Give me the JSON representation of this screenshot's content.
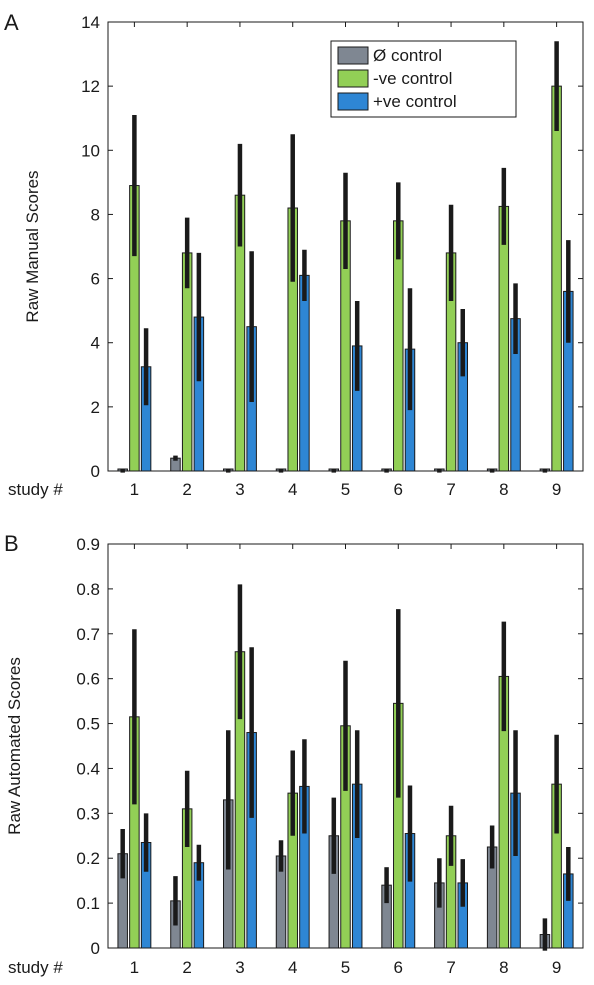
{
  "colors": {
    "series_0": "#7f8792",
    "series_1": "#92cf56",
    "series_2": "#2e86d4",
    "error_bar": "#1a1a1a"
  },
  "chart_data": [
    {
      "type": "bar",
      "panel_label": "A",
      "ylabel": "Raw Manual Scores",
      "xlabel": "study #",
      "categories": [
        "1",
        "2",
        "3",
        "4",
        "5",
        "6",
        "7",
        "8",
        "9"
      ],
      "ylim": [
        0,
        14
      ],
      "yticks": [
        "0",
        "2",
        "4",
        "6",
        "8",
        "10",
        "12",
        "14"
      ],
      "legend_position": "top-right",
      "series": [
        {
          "name": "Ø control",
          "values": [
            0.0,
            0.4,
            0.0,
            0.0,
            0.0,
            0.0,
            0.0,
            0.0,
            0.0
          ],
          "error": [
            0.05,
            0.08,
            0.05,
            0.05,
            0.05,
            0.05,
            0.05,
            0.05,
            0.05
          ]
        },
        {
          "name": "-ve control",
          "values": [
            8.9,
            6.8,
            8.6,
            8.2,
            7.8,
            7.8,
            6.8,
            8.25,
            12.0
          ],
          "error": [
            2.2,
            1.1,
            1.6,
            2.3,
            1.5,
            1.2,
            1.5,
            1.2,
            1.4
          ]
        },
        {
          "name": "+ve control",
          "values": [
            3.25,
            4.8,
            4.5,
            6.1,
            3.9,
            3.8,
            4.0,
            4.75,
            5.6
          ],
          "error": [
            1.2,
            2.0,
            2.35,
            0.8,
            1.4,
            1.9,
            1.05,
            1.1,
            1.6
          ]
        }
      ]
    },
    {
      "type": "bar",
      "panel_label": "B",
      "ylabel": "Raw Automated Scores",
      "xlabel": "study #",
      "categories": [
        "1",
        "2",
        "3",
        "4",
        "5",
        "6",
        "7",
        "8",
        "9"
      ],
      "ylim": [
        0,
        0.9
      ],
      "yticks": [
        "0",
        "0.1",
        "0.2",
        "0.3",
        "0.4",
        "0.5",
        "0.6",
        "0.7",
        "0.8",
        "0.9"
      ],
      "series": [
        {
          "name": "Ø control",
          "values": [
            0.21,
            0.105,
            0.33,
            0.205,
            0.25,
            0.14,
            0.145,
            0.225,
            0.03
          ],
          "error": [
            0.055,
            0.055,
            0.155,
            0.035,
            0.085,
            0.04,
            0.055,
            0.048,
            0.036
          ]
        },
        {
          "name": "-ve control",
          "values": [
            0.515,
            0.31,
            0.66,
            0.345,
            0.495,
            0.545,
            0.25,
            0.605,
            0.365
          ],
          "error": [
            0.195,
            0.085,
            0.15,
            0.095,
            0.145,
            0.21,
            0.067,
            0.122,
            0.11
          ]
        },
        {
          "name": "+ve control",
          "values": [
            0.235,
            0.19,
            0.48,
            0.36,
            0.365,
            0.255,
            0.145,
            0.345,
            0.165
          ],
          "error": [
            0.065,
            0.04,
            0.19,
            0.105,
            0.12,
            0.107,
            0.053,
            0.14,
            0.06
          ]
        }
      ]
    }
  ]
}
